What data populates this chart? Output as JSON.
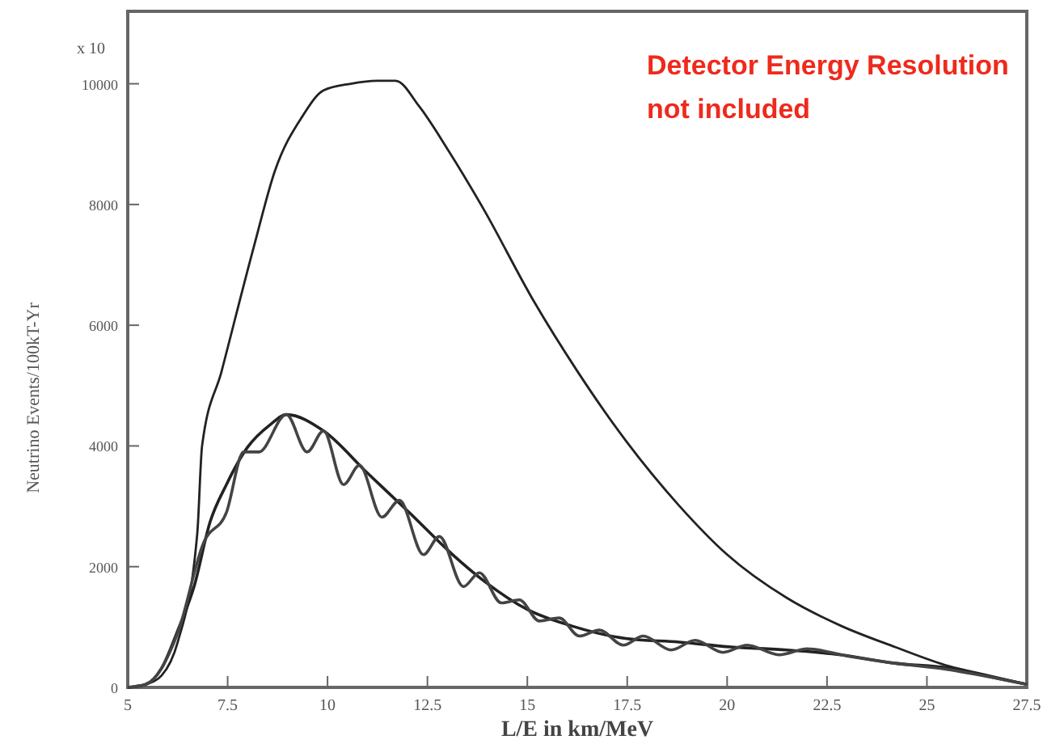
{
  "chart_data": {
    "type": "line",
    "xlabel": "L/E in km/MeV",
    "ylabel": "Neutrino Events/100kT-Yr",
    "annotations": [
      "x 10",
      "Detector Energy Resolution not included"
    ],
    "xlim": [
      5,
      27.5
    ],
    "ylim": [
      0,
      11200
    ],
    "xticks": [
      {
        "value": 5,
        "label": "5"
      },
      7.5,
      10,
      12.5,
      15,
      17.5,
      20,
      22.5,
      25,
      27.5
    ],
    "yticks": [
      0,
      2000,
      4000,
      6000,
      8000,
      10000
    ],
    "grid": false,
    "marker": "none",
    "line_style": "solid",
    "series": [
      {
        "color": "#222222",
        "x": [
          5,
          5.45,
          5.85,
          6.25,
          6.74,
          6.86,
          7.35,
          8.16,
          8.68,
          9.37,
          9.9,
          10.58,
          11.23,
          11.7,
          12.3,
          13.0,
          13.9,
          15.16,
          16.25,
          17.46,
          18.8,
          20.0,
          21.5,
          22.85,
          24.2,
          25.56,
          26.6,
          27.5
        ],
        "values": [
          0,
          50,
          200,
          750,
          2550,
          4000,
          5240,
          7310,
          8550,
          9460,
          9890,
          10000,
          10050,
          10050,
          9620,
          8920,
          7930,
          6400,
          5240,
          4090,
          3010,
          2200,
          1480,
          1020,
          670,
          350,
          190,
          50
        ]
      },
      {
        "color": "#222222",
        "x": [
          5,
          5.45,
          5.85,
          6.25,
          6.66,
          7.06,
          7.47,
          8.0,
          8.56,
          8.97,
          9.9,
          11.0,
          12.04,
          13.13,
          13.94,
          15.0,
          16.1,
          17.46,
          18.8,
          20.1,
          21.5,
          22.85,
          24.2,
          25.56,
          26.9,
          27.5
        ],
        "values": [
          0,
          50,
          320,
          940,
          1670,
          2740,
          3360,
          3980,
          4350,
          4520,
          4250,
          3550,
          2900,
          2200,
          1750,
          1290,
          1020,
          810,
          750,
          670,
          620,
          540,
          400,
          320,
          130,
          50
        ]
      },
      {
        "color": "#444444",
        "x": [
          5,
          5.45,
          6.25,
          6.9,
          7.47,
          7.9,
          8.28,
          8.97,
          9.49,
          9.9,
          10.4,
          10.8,
          11.36,
          11.8,
          12.4,
          12.8,
          13.4,
          13.8,
          14.35,
          14.8,
          15.3,
          15.8,
          16.3,
          16.8,
          17.4,
          17.9,
          18.6,
          19.2,
          19.9,
          20.5,
          21.3,
          22.0,
          23.0,
          24.2,
          25.5,
          26.9,
          27.5
        ],
        "values": [
          0,
          50,
          900,
          2400,
          2900,
          3900,
          3900,
          4520,
          3900,
          4250,
          3360,
          3680,
          2820,
          3100,
          2200,
          2500,
          1670,
          1900,
          1400,
          1450,
          1100,
          1150,
          850,
          950,
          700,
          850,
          620,
          780,
          580,
          700,
          540,
          640,
          520,
          400,
          300,
          130,
          50
        ]
      }
    ]
  }
}
